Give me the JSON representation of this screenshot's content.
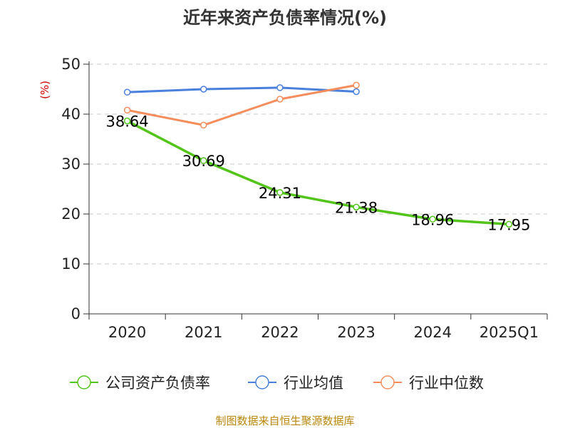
{
  "chart_data": {
    "type": "line",
    "title": "近年来资产负债率情况(%)",
    "ylabel": "(%)",
    "xlabel": "",
    "categories": [
      "2020",
      "2021",
      "2022",
      "2023",
      "2024",
      "2025Q1"
    ],
    "ylim": [
      0,
      50
    ],
    "yticks": [
      0,
      10,
      20,
      30,
      40,
      50
    ],
    "grid": true,
    "legend_position": "bottom",
    "series": [
      {
        "name": "公司资产负债率",
        "color": "#52c41a",
        "values": [
          38.64,
          30.69,
          24.31,
          21.38,
          18.96,
          17.95
        ],
        "labels": [
          "38.64",
          "30.69",
          "24.31",
          "21.38",
          "18.96",
          "17.95"
        ]
      },
      {
        "name": "行业均值",
        "color": "#4a7fdc",
        "values": [
          44.4,
          45.0,
          45.3,
          44.5,
          null,
          null
        ]
      },
      {
        "name": "行业中位数",
        "color": "#f58d5c",
        "values": [
          40.8,
          37.8,
          43.0,
          45.8,
          null,
          null
        ]
      }
    ]
  },
  "source": "制图数据来自恒生聚源数据库"
}
